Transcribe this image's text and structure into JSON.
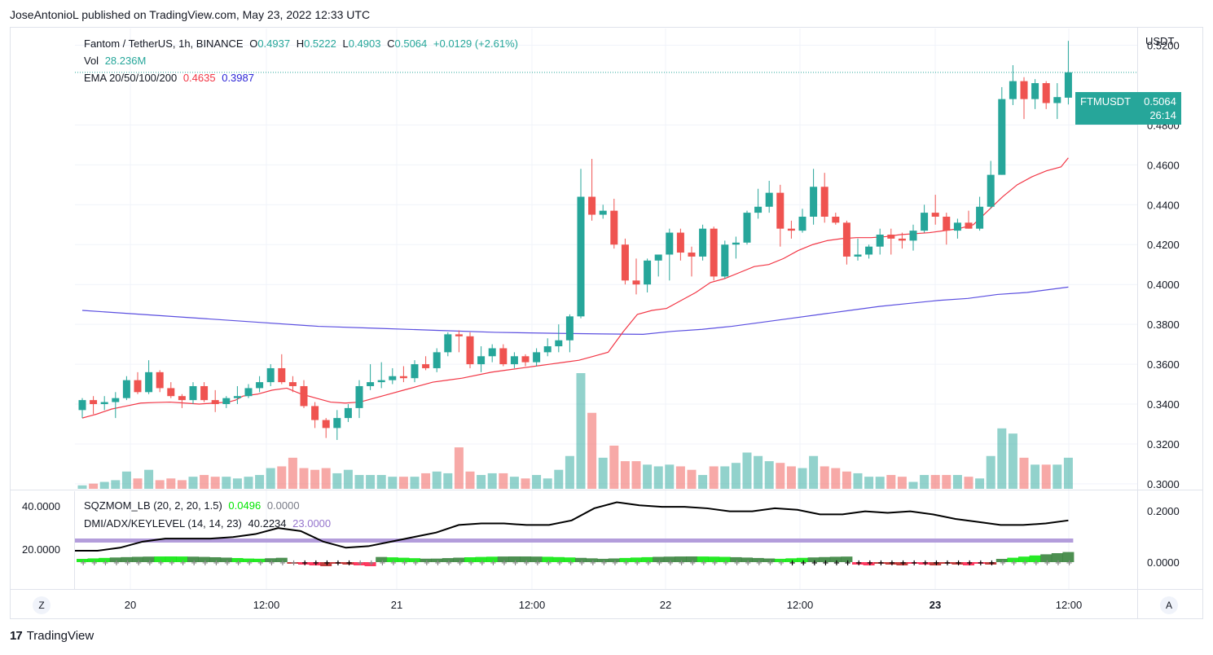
{
  "header": {
    "text": "JoseAntonioL published on TradingView.com, May 23, 2022 12:33 UTC"
  },
  "legend": {
    "symbol": "Fantom / TetherUS, 1h, BINANCE",
    "o_label": "O",
    "o_value": "0.4937",
    "h_label": "H",
    "h_value": "0.5222",
    "l_label": "L",
    "l_value": "0.4903",
    "c_label": "C",
    "c_value": "0.5064",
    "change": "+0.0129 (+2.61%)",
    "vol_label": "Vol",
    "vol_value": "28.236M",
    "ema_label": "EMA 20/50/100/200",
    "ema_value_1": "0.4635",
    "ema_value_2": "0.3987",
    "sqz_label": "SQZMOM_LB (20, 2, 20, 1.5)",
    "sqz_value_1": "0.0496",
    "sqz_value_2": "0.0000",
    "dmi_label": "DMI/ADX/KEYLEVEL (14, 14, 23)",
    "dmi_value_1": "40.2234",
    "dmi_value_2": "23.0000"
  },
  "price_tag": {
    "symbol": "FTMUSDT",
    "price": "0.5064",
    "countdown": "26:14"
  },
  "axis": {
    "currency": "USDT",
    "right_ticks": [
      "0.5200",
      "0.4800",
      "0.4600",
      "0.4400",
      "0.4200",
      "0.4000",
      "0.3800",
      "0.3600",
      "0.3400",
      "0.3200",
      "0.3000"
    ],
    "indicator_right_ticks": [
      "0.2000",
      "0.0000"
    ],
    "indicator_left_ticks": [
      "40.0000",
      "20.0000"
    ],
    "time_ticks": [
      "20",
      "12:00",
      "21",
      "12:00",
      "22",
      "12:00",
      "23",
      "12:00"
    ],
    "left_badge": "Z",
    "right_badge": "A"
  },
  "colors": {
    "up": "#26a69a",
    "down": "#ef5350",
    "ema20": "#f23645",
    "ema200": "#5b4fe0",
    "adx": "#000000",
    "keylevel": "#b39ddb"
  },
  "footer": {
    "brand": "TradingView",
    "logo_text": "17"
  },
  "chart_data": {
    "type": "candlestick",
    "symbol": "FTMUSDT",
    "interval": "1h",
    "ylim": [
      0.2975,
      0.5284
    ],
    "candles": [
      [
        0.337,
        0.343,
        0.333,
        0.342
      ],
      [
        0.342,
        0.344,
        0.335,
        0.34
      ],
      [
        0.34,
        0.344,
        0.337,
        0.341
      ],
      [
        0.341,
        0.346,
        0.333,
        0.343
      ],
      [
        0.343,
        0.354,
        0.342,
        0.352
      ],
      [
        0.352,
        0.356,
        0.345,
        0.346
      ],
      [
        0.346,
        0.362,
        0.345,
        0.356
      ],
      [
        0.356,
        0.357,
        0.346,
        0.348
      ],
      [
        0.348,
        0.351,
        0.343,
        0.344
      ],
      [
        0.344,
        0.345,
        0.338,
        0.342
      ],
      [
        0.342,
        0.351,
        0.34,
        0.349
      ],
      [
        0.349,
        0.351,
        0.341,
        0.342
      ],
      [
        0.342,
        0.347,
        0.336,
        0.34
      ],
      [
        0.34,
        0.344,
        0.338,
        0.343
      ],
      [
        0.343,
        0.349,
        0.34,
        0.344
      ],
      [
        0.344,
        0.35,
        0.343,
        0.348
      ],
      [
        0.348,
        0.354,
        0.346,
        0.351
      ],
      [
        0.351,
        0.36,
        0.349,
        0.358
      ],
      [
        0.358,
        0.365,
        0.35,
        0.351
      ],
      [
        0.351,
        0.354,
        0.346,
        0.349
      ],
      [
        0.349,
        0.352,
        0.338,
        0.339
      ],
      [
        0.339,
        0.341,
        0.328,
        0.332
      ],
      [
        0.332,
        0.333,
        0.323,
        0.328
      ],
      [
        0.328,
        0.337,
        0.322,
        0.333
      ],
      [
        0.333,
        0.34,
        0.331,
        0.338
      ],
      [
        0.338,
        0.352,
        0.333,
        0.349
      ],
      [
        0.349,
        0.36,
        0.347,
        0.351
      ],
      [
        0.351,
        0.361,
        0.348,
        0.352
      ],
      [
        0.352,
        0.358,
        0.35,
        0.354
      ],
      [
        0.354,
        0.359,
        0.351,
        0.353
      ],
      [
        0.353,
        0.362,
        0.351,
        0.36
      ],
      [
        0.36,
        0.364,
        0.357,
        0.358
      ],
      [
        0.358,
        0.368,
        0.356,
        0.366
      ],
      [
        0.366,
        0.376,
        0.364,
        0.375
      ],
      [
        0.375,
        0.377,
        0.366,
        0.374
      ],
      [
        0.374,
        0.376,
        0.358,
        0.36
      ],
      [
        0.36,
        0.369,
        0.356,
        0.364
      ],
      [
        0.364,
        0.37,
        0.361,
        0.368
      ],
      [
        0.368,
        0.37,
        0.359,
        0.36
      ],
      [
        0.36,
        0.366,
        0.358,
        0.364
      ],
      [
        0.364,
        0.365,
        0.359,
        0.361
      ],
      [
        0.361,
        0.368,
        0.359,
        0.366
      ],
      [
        0.366,
        0.373,
        0.364,
        0.369
      ],
      [
        0.369,
        0.38,
        0.366,
        0.372
      ],
      [
        0.372,
        0.385,
        0.366,
        0.384
      ],
      [
        0.384,
        0.458,
        0.383,
        0.444
      ],
      [
        0.444,
        0.463,
        0.432,
        0.435
      ],
      [
        0.435,
        0.44,
        0.433,
        0.437
      ],
      [
        0.437,
        0.443,
        0.418,
        0.42
      ],
      [
        0.42,
        0.423,
        0.4,
        0.402
      ],
      [
        0.402,
        0.413,
        0.395,
        0.4
      ],
      [
        0.4,
        0.413,
        0.396,
        0.412
      ],
      [
        0.412,
        0.415,
        0.404,
        0.415
      ],
      [
        0.415,
        0.428,
        0.402,
        0.426
      ],
      [
        0.426,
        0.428,
        0.412,
        0.416
      ],
      [
        0.416,
        0.419,
        0.404,
        0.414
      ],
      [
        0.414,
        0.43,
        0.412,
        0.428
      ],
      [
        0.428,
        0.429,
        0.402,
        0.404
      ],
      [
        0.404,
        0.422,
        0.403,
        0.42
      ],
      [
        0.42,
        0.424,
        0.413,
        0.421
      ],
      [
        0.421,
        0.437,
        0.42,
        0.436
      ],
      [
        0.436,
        0.448,
        0.433,
        0.439
      ],
      [
        0.439,
        0.452,
        0.436,
        0.446
      ],
      [
        0.446,
        0.45,
        0.419,
        0.428
      ],
      [
        0.428,
        0.432,
        0.423,
        0.427
      ],
      [
        0.427,
        0.438,
        0.426,
        0.434
      ],
      [
        0.434,
        0.458,
        0.43,
        0.449
      ],
      [
        0.449,
        0.456,
        0.431,
        0.434
      ],
      [
        0.434,
        0.436,
        0.43,
        0.431
      ],
      [
        0.431,
        0.432,
        0.41,
        0.414
      ],
      [
        0.414,
        0.423,
        0.412,
        0.415
      ],
      [
        0.415,
        0.42,
        0.413,
        0.419
      ],
      [
        0.419,
        0.428,
        0.415,
        0.425
      ],
      [
        0.425,
        0.428,
        0.415,
        0.423
      ],
      [
        0.423,
        0.426,
        0.418,
        0.422
      ],
      [
        0.422,
        0.43,
        0.417,
        0.427
      ],
      [
        0.427,
        0.44,
        0.426,
        0.436
      ],
      [
        0.436,
        0.445,
        0.43,
        0.434
      ],
      [
        0.434,
        0.436,
        0.42,
        0.427
      ],
      [
        0.427,
        0.433,
        0.423,
        0.431
      ],
      [
        0.431,
        0.437,
        0.428,
        0.428
      ],
      [
        0.428,
        0.444,
        0.427,
        0.439
      ],
      [
        0.439,
        0.462,
        0.438,
        0.455
      ],
      [
        0.455,
        0.499,
        0.455,
        0.493
      ],
      [
        0.493,
        0.51,
        0.49,
        0.502
      ],
      [
        0.502,
        0.504,
        0.483,
        0.493
      ],
      [
        0.493,
        0.503,
        0.488,
        0.501
      ],
      [
        0.501,
        0.502,
        0.488,
        0.491
      ],
      [
        0.491,
        0.501,
        0.483,
        0.494
      ],
      [
        0.4937,
        0.5222,
        0.4903,
        0.5064
      ]
    ],
    "volume": [
      2,
      3,
      4,
      5,
      10,
      6,
      11,
      5,
      6,
      5,
      7,
      8,
      7,
      7,
      6,
      7,
      8,
      12,
      13,
      18,
      12,
      11,
      12,
      9,
      11,
      8,
      8,
      8,
      7,
      7,
      7,
      9,
      10,
      9,
      24,
      10,
      8,
      9,
      9,
      7,
      6,
      8,
      6,
      11,
      19,
      67,
      44,
      18,
      25,
      16,
      16,
      14,
      13,
      14,
      13,
      11,
      8,
      13,
      13,
      15,
      21,
      19,
      16,
      15,
      13,
      12,
      19,
      13,
      12,
      10,
      9,
      7,
      7,
      8,
      7,
      4,
      8,
      8,
      8,
      8,
      7,
      6,
      19,
      35,
      32,
      18,
      14,
      14,
      14,
      18
    ],
    "ema20": [
      0.333,
      0.334,
      0.335,
      0.3375,
      0.339,
      0.3405,
      0.3408,
      0.341,
      0.3405,
      0.34,
      0.3405,
      0.341,
      0.342,
      0.344,
      0.345,
      0.347,
      0.348,
      0.345,
      0.343,
      0.341,
      0.3405,
      0.341,
      0.343,
      0.345,
      0.347,
      0.349,
      0.351,
      0.352,
      0.353,
      0.356,
      0.357,
      0.358,
      0.359,
      0.36,
      0.361,
      0.362,
      0.364,
      0.366,
      0.376,
      0.385,
      0.387,
      0.388,
      0.392,
      0.396,
      0.401,
      0.403,
      0.406,
      0.409,
      0.41,
      0.413,
      0.417,
      0.42,
      0.422,
      0.423,
      0.4235,
      0.4235,
      0.424,
      0.425,
      0.4255,
      0.426,
      0.427,
      0.428,
      0.43,
      0.437,
      0.444,
      0.45,
      0.454,
      0.457,
      0.459,
      0.4635
    ],
    "ema20_x": [
      0,
      1,
      2,
      4,
      6,
      8,
      10,
      12,
      14,
      16,
      18,
      20,
      21,
      22,
      24,
      26,
      28,
      30,
      32,
      34,
      36,
      38,
      40,
      42,
      44,
      46,
      48,
      50,
      52,
      56,
      58,
      60,
      62,
      64,
      66,
      68,
      70,
      72,
      74,
      76,
      78,
      80,
      82,
      84,
      86,
      88,
      90,
      92,
      94,
      96,
      98,
      100,
      102,
      104,
      106,
      108,
      110,
      112,
      114,
      116,
      118,
      120,
      122,
      124,
      126,
      128,
      130,
      132,
      134,
      135
    ],
    "ema200": [
      0.387,
      0.385,
      0.383,
      0.381,
      0.379,
      0.378,
      0.377,
      0.376,
      0.3755,
      0.3752,
      0.375,
      0.3765,
      0.3775,
      0.379,
      0.381,
      0.383,
      0.385,
      0.387,
      0.389,
      0.3905,
      0.392,
      0.393,
      0.395,
      0.396,
      0.3987
    ],
    "ema200_x": [
      0,
      10,
      20,
      30,
      40,
      50,
      60,
      70,
      80,
      88,
      95,
      100,
      105,
      110,
      115,
      120,
      125,
      130,
      135,
      140,
      145,
      150,
      155,
      160,
      167
    ],
    "sqz_adx_line": [
      0.2,
      0.0
    ],
    "sqz_bottom_ticks_label": "momentum histogram"
  }
}
